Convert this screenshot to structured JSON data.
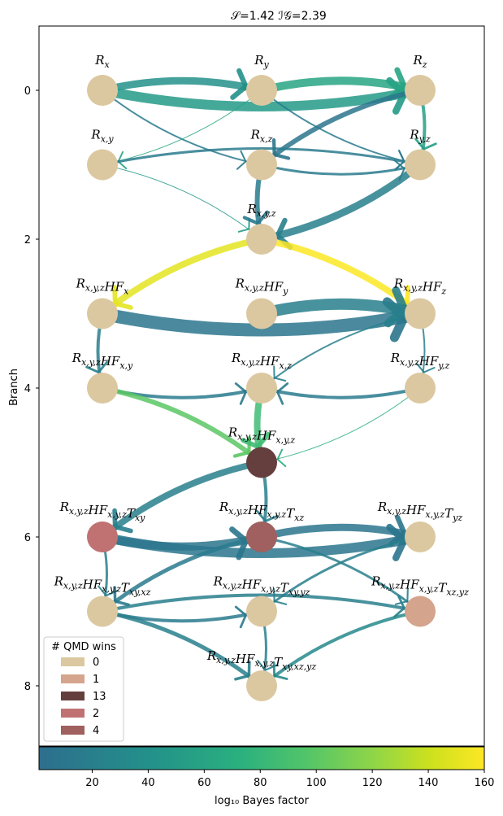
{
  "chart_data": {
    "type": "network",
    "title": "𝒮=1.42        ℐ𝒢=2.39",
    "ylabel": "Branch",
    "y_ticks": [
      "0",
      "2",
      "4",
      "6",
      "8"
    ],
    "colorbar": {
      "label": "log₁₀ Bayes factor",
      "ticks": [
        "20",
        "40",
        "60",
        "80",
        "100",
        "120",
        "140",
        "160"
      ],
      "range": [
        1,
        160
      ],
      "colormap": "viridis-like"
    },
    "legend": {
      "title": "# QMD wins",
      "entries": [
        {
          "label": "0",
          "color": "#dcc8a0"
        },
        {
          "label": "1",
          "color": "#d4a48c"
        },
        {
          "label": "13",
          "color": "#653e3e"
        },
        {
          "label": "2",
          "color": "#c07272"
        },
        {
          "label": "4",
          "color": "#a06060"
        }
      ]
    },
    "nodes": [
      {
        "id": "Rx",
        "branch": 0,
        "col": 0,
        "wins": 0
      },
      {
        "id": "Ry",
        "branch": 0,
        "col": 1,
        "wins": 0
      },
      {
        "id": "Rz",
        "branch": 0,
        "col": 2,
        "wins": 0
      },
      {
        "id": "Rxy",
        "branch": 1,
        "col": 0,
        "wins": 0
      },
      {
        "id": "Rxz",
        "branch": 1,
        "col": 1,
        "wins": 0
      },
      {
        "id": "Ryz",
        "branch": 1,
        "col": 2,
        "wins": 0
      },
      {
        "id": "Rxyz",
        "branch": 2,
        "col": 1,
        "wins": 0
      },
      {
        "id": "HFx",
        "branch": 3,
        "col": 0,
        "wins": 0
      },
      {
        "id": "HFy",
        "branch": 3,
        "col": 1,
        "wins": 0
      },
      {
        "id": "HFz",
        "branch": 3,
        "col": 2,
        "wins": 0
      },
      {
        "id": "HFxy",
        "branch": 4,
        "col": 0,
        "wins": 0
      },
      {
        "id": "HFxz",
        "branch": 4,
        "col": 1,
        "wins": 0
      },
      {
        "id": "HFyz",
        "branch": 4,
        "col": 2,
        "wins": 0
      },
      {
        "id": "HFxyz",
        "branch": 5,
        "col": 1,
        "wins": 13
      },
      {
        "id": "Txy",
        "branch": 6,
        "col": 0,
        "wins": 2
      },
      {
        "id": "Txz",
        "branch": 6,
        "col": 1,
        "wins": 4
      },
      {
        "id": "Tyz",
        "branch": 6,
        "col": 2,
        "wins": 0
      },
      {
        "id": "Txyxz",
        "branch": 7,
        "col": 0,
        "wins": 0
      },
      {
        "id": "Txyyz",
        "branch": 7,
        "col": 1,
        "wins": 0
      },
      {
        "id": "Txzyz",
        "branch": 7,
        "col": 2,
        "wins": 1
      },
      {
        "id": "Tall",
        "branch": 8,
        "col": 1,
        "wins": 0
      }
    ],
    "edges": [
      {
        "from": "Rx",
        "to": "Ry",
        "bf": 40,
        "w": 9
      },
      {
        "from": "Rx",
        "to": "Rz",
        "bf": 50,
        "w": 12
      },
      {
        "from": "Ry",
        "to": "Rz",
        "bf": 60,
        "w": 10
      },
      {
        "from": "Rx",
        "to": "Rxz",
        "bf": 15,
        "w": 2
      },
      {
        "from": "Ry",
        "to": "Rxy",
        "bf": 60,
        "w": 1
      },
      {
        "from": "Rz",
        "to": "Rxz",
        "bf": 10,
        "w": 6
      },
      {
        "from": "Rz",
        "to": "Ryz",
        "bf": 55,
        "w": 4
      },
      {
        "from": "Ry",
        "to": "Ryz",
        "bf": 15,
        "w": 2
      },
      {
        "from": "Rxy",
        "to": "Ryz",
        "bf": 15,
        "w": 3
      },
      {
        "from": "Rxz",
        "to": "Ryz",
        "bf": 15,
        "w": 3
      },
      {
        "from": "Rxy",
        "to": "Rxyz",
        "bf": 50,
        "w": 1
      },
      {
        "from": "Rxz",
        "to": "Rxyz",
        "bf": 15,
        "w": 6
      },
      {
        "from": "Ryz",
        "to": "Rxyz",
        "bf": 20,
        "w": 9
      },
      {
        "from": "Rxyz",
        "to": "HFx",
        "bf": 150,
        "w": 8
      },
      {
        "from": "Rxyz",
        "to": "HFz",
        "bf": 160,
        "w": 8
      },
      {
        "from": "HFx",
        "to": "HFz",
        "bf": 10,
        "w": 16
      },
      {
        "from": "HFy",
        "to": "HFz",
        "bf": 20,
        "w": 14
      },
      {
        "from": "HFx",
        "to": "HFxy",
        "bf": 20,
        "w": 4
      },
      {
        "from": "HFz",
        "to": "HFyz",
        "bf": 20,
        "w": 2
      },
      {
        "from": "HFxy",
        "to": "HFxz",
        "bf": 15,
        "w": 4
      },
      {
        "from": "HFyz",
        "to": "HFxz",
        "bf": 15,
        "w": 4
      },
      {
        "from": "HFz",
        "to": "HFxz",
        "bf": 20,
        "w": 2
      },
      {
        "from": "HFxy",
        "to": "HFxyz",
        "bf": 100,
        "w": 6
      },
      {
        "from": "HFxz",
        "to": "HFxyz",
        "bf": 85,
        "w": 8
      },
      {
        "from": "HFyz",
        "to": "HFxyz",
        "bf": 70,
        "w": 1
      },
      {
        "from": "HFxyz",
        "to": "Txy",
        "bf": 20,
        "w": 8
      },
      {
        "from": "HFxyz",
        "to": "Txz",
        "bf": 20,
        "w": 4
      },
      {
        "from": "Txy",
        "to": "Tyz",
        "bf": 10,
        "w": 12
      },
      {
        "from": "Txz",
        "to": "Tyz",
        "bf": 10,
        "w": 9
      },
      {
        "from": "Txy",
        "to": "Txz",
        "bf": 10,
        "w": 10
      },
      {
        "from": "Txy",
        "to": "Txyxz",
        "bf": 20,
        "w": 3
      },
      {
        "from": "Txz",
        "to": "Txyxz",
        "bf": 15,
        "w": 5
      },
      {
        "from": "Txz",
        "to": "Txzyz",
        "bf": 20,
        "w": 3
      },
      {
        "from": "Tyz",
        "to": "Txyyz",
        "bf": 20,
        "w": 3
      },
      {
        "from": "Txyxz",
        "to": "Txzyz",
        "bf": 20,
        "w": 4
      },
      {
        "from": "Txyxz",
        "to": "Txyyz",
        "bf": 15,
        "w": 4
      },
      {
        "from": "Txyxz",
        "to": "Tall",
        "bf": 20,
        "w": 5
      },
      {
        "from": "Txzyz",
        "to": "Tall",
        "bf": 30,
        "w": 4
      },
      {
        "from": "Txyyz",
        "to": "Tall",
        "bf": 20,
        "w": 3
      }
    ]
  }
}
